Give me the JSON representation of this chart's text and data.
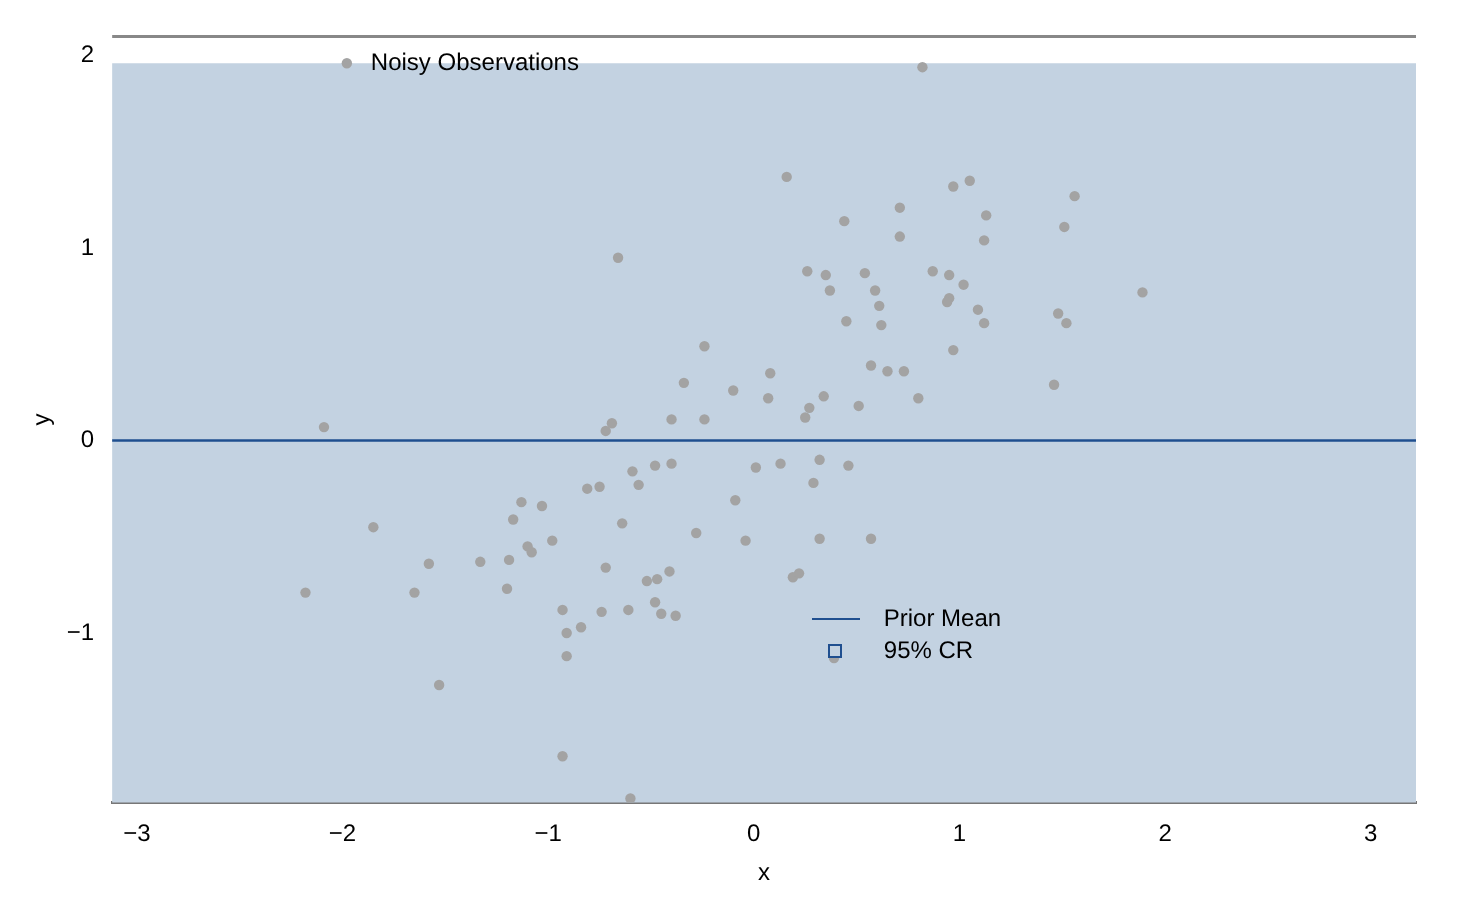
{
  "chart_data": {
    "type": "scatter",
    "xlabel": "x",
    "ylabel": "y",
    "xlim": [
      -3.12,
      3.22
    ],
    "xticks": [
      -3,
      -2,
      -1,
      0,
      1,
      2,
      3
    ],
    "ylim": [
      -1.88,
      2.1
    ],
    "yticks": [
      -1,
      0,
      1,
      2
    ],
    "grid": false,
    "legend": "top",
    "marker": "circle",
    "series": [
      {
        "name": "Noisy Observations",
        "color": "#a3a3a3",
        "x": [
          -0.66,
          -0.24,
          -0.34,
          -0.1,
          -0.4,
          -0.24,
          -2.09,
          -0.69,
          -0.72,
          0.07,
          0.82,
          0.16,
          0.97,
          1.05,
          1.56,
          0.71,
          0.44,
          1.13,
          1.51,
          0.71,
          1.12,
          0.26,
          0.35,
          0.54,
          0.87,
          0.95,
          1.02,
          0.37,
          0.59,
          1.89,
          0.95,
          0.94,
          0.61,
          1.09,
          1.48,
          0.45,
          0.62,
          1.12,
          1.52,
          0.97,
          0.57,
          0.65,
          0.73,
          0.08,
          1.46,
          0.34,
          0.8,
          0.51,
          0.27,
          0.25,
          0.01,
          -0.59,
          -0.48,
          -0.4,
          -0.56,
          -0.81,
          -0.75,
          -1.13,
          -1.03,
          -1.17,
          -0.64,
          -1.85,
          -0.09,
          -0.28,
          -0.04,
          -0.98,
          -1.1,
          -1.08,
          -1.33,
          -1.19,
          -1.58,
          -0.72,
          -0.52,
          -0.47,
          -0.41,
          -2.18,
          -1.65,
          -1.2,
          -0.93,
          -0.74,
          -0.61,
          -0.48,
          -0.45,
          -0.38,
          -0.91,
          -0.84,
          -0.91,
          -1.53,
          -0.93,
          -0.6,
          0.13,
          0.32,
          0.46,
          0.29,
          0.32,
          0.57,
          0.19,
          0.22,
          0.39
        ],
        "values": [
          0.95,
          0.49,
          0.3,
          0.26,
          0.11,
          0.11,
          0.07,
          0.09,
          0.05,
          0.22,
          1.94,
          1.37,
          1.32,
          1.35,
          1.27,
          1.21,
          1.14,
          1.17,
          1.11,
          1.06,
          1.04,
          0.88,
          0.86,
          0.87,
          0.88,
          0.86,
          0.81,
          0.78,
          0.78,
          0.77,
          0.74,
          0.72,
          0.7,
          0.68,
          0.66,
          0.62,
          0.6,
          0.61,
          0.61,
          0.47,
          0.39,
          0.36,
          0.36,
          0.35,
          0.29,
          0.23,
          0.22,
          0.18,
          0.17,
          0.12,
          -0.14,
          -0.16,
          -0.13,
          -0.12,
          -0.23,
          -0.25,
          -0.24,
          -0.32,
          -0.34,
          -0.41,
          -0.43,
          -0.45,
          -0.31,
          -0.48,
          -0.52,
          -0.52,
          -0.55,
          -0.58,
          -0.63,
          -0.62,
          -0.64,
          -0.66,
          -0.73,
          -0.72,
          -0.68,
          -0.79,
          -0.79,
          -0.77,
          -0.88,
          -0.89,
          -0.88,
          -0.84,
          -0.9,
          -0.91,
          -1.0,
          -0.97,
          -1.12,
          -1.27,
          -1.64,
          -1.86,
          -0.12,
          -0.1,
          -0.13,
          -0.22,
          -0.51,
          -0.51,
          -0.71,
          -0.69,
          -1.13
        ]
      }
    ],
    "ref_lines": [
      {
        "axis": "y",
        "value": 0,
        "label": "Prior Mean",
        "color": "#1f4f8f",
        "line_style": "solid"
      }
    ],
    "bands": [
      {
        "axis": "y",
        "from": -1.96,
        "to": 1.96,
        "label": "95% CR",
        "color": "#c3d2e1"
      }
    ]
  }
}
